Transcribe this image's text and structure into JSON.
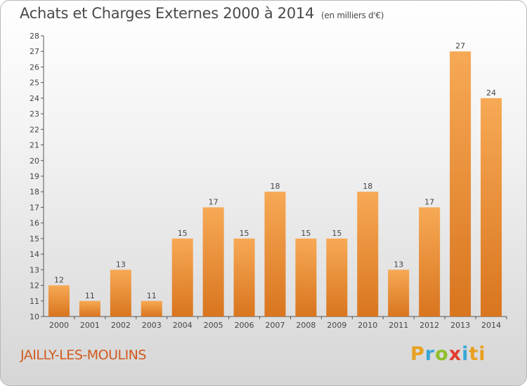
{
  "title": "Achats et Charges Externes 2000 à 2014",
  "unit_note": "(en milliers d'€)",
  "place_name": "JAILLY-LES-MOULINS",
  "logo_text": "Proxiti",
  "colors": {
    "bar_light": "#f7a955",
    "bar_dark": "#d9751f",
    "place": "#d05a1e"
  },
  "chart_data": {
    "type": "bar",
    "title": "Achats et Charges Externes 2000 à 2014",
    "xlabel": "",
    "ylabel": "",
    "categories": [
      "2000",
      "2001",
      "2002",
      "2003",
      "2004",
      "2005",
      "2006",
      "2007",
      "2008",
      "2009",
      "2010",
      "2011",
      "2012",
      "2013",
      "2014"
    ],
    "values": [
      12,
      11,
      13,
      11,
      15,
      17,
      15,
      18,
      15,
      15,
      18,
      13,
      17,
      27,
      24
    ],
    "ylim": [
      10,
      28
    ],
    "yticks": [
      10,
      11,
      12,
      13,
      14,
      15,
      16,
      17,
      18,
      19,
      20,
      21,
      22,
      23,
      24,
      25,
      26,
      27,
      28
    ],
    "grid": false,
    "data_labels": true
  }
}
